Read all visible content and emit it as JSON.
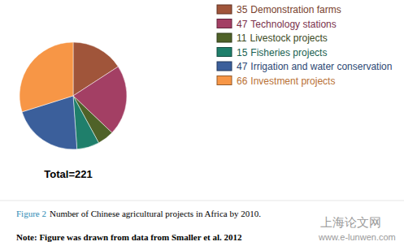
{
  "chart_data": {
    "type": "pie",
    "categories": [
      "Demonstration farms",
      "Technology stations",
      "Livestock projects",
      "Fisheries projects",
      "Irrigation and water conservation",
      "Investment projects"
    ],
    "values": [
      35,
      47,
      11,
      15,
      47,
      66
    ],
    "colors": [
      "#a0553a",
      "#a33f64",
      "#4f6228",
      "#1f7f6b",
      "#3b5f9b",
      "#f79646"
    ],
    "legend": "upper right",
    "total_label": "Total=221",
    "caption_label": "Figure 2",
    "caption": "Number of Chinese agricultural projects in Africa by 2010.",
    "note": "Note: Figure was drawn from data from Smaller et al. 2012",
    "watermark": "上海论文网",
    "watermark_url": "www.e-lunwen.com"
  }
}
